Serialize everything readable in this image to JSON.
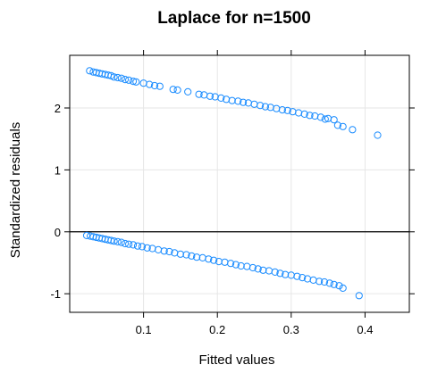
{
  "chart_data": {
    "type": "scatter",
    "title": "Laplace for n=1500",
    "xlabel": "Fitted values",
    "ylabel": "Standardized residuals",
    "xlim": [
      0.0,
      0.46
    ],
    "ylim": [
      -1.3,
      2.85
    ],
    "xticks": [
      0.1,
      0.2,
      0.3,
      0.4
    ],
    "xtick_labels": [
      "0.1",
      "0.2",
      "0.3",
      "0.4"
    ],
    "yticks": [
      -1,
      0,
      1,
      2
    ],
    "ytick_labels": [
      "-1",
      "0",
      "1",
      "2"
    ],
    "grid": true,
    "reference_line_y": 0,
    "marker": "open-circle",
    "color": "#1a8cff",
    "series": [
      {
        "x": [
          0.027,
          0.032,
          0.036,
          0.04,
          0.044,
          0.048,
          0.052,
          0.056,
          0.06,
          0.065,
          0.07,
          0.075,
          0.08,
          0.086,
          0.09,
          0.1,
          0.108,
          0.115,
          0.122,
          0.14,
          0.146,
          0.16,
          0.175,
          0.182,
          0.19,
          0.197,
          0.205,
          0.212,
          0.22,
          0.228,
          0.235,
          0.242,
          0.25,
          0.258,
          0.265,
          0.272,
          0.28,
          0.288,
          0.295,
          0.302,
          0.31,
          0.318,
          0.325,
          0.332,
          0.34,
          0.346,
          0.35,
          0.358,
          0.363,
          0.37,
          0.383,
          0.417
        ],
        "y": [
          2.6,
          2.58,
          2.57,
          2.56,
          2.55,
          2.54,
          2.53,
          2.52,
          2.5,
          2.49,
          2.48,
          2.46,
          2.45,
          2.43,
          2.42,
          2.4,
          2.38,
          2.36,
          2.35,
          2.3,
          2.29,
          2.26,
          2.22,
          2.21,
          2.19,
          2.18,
          2.16,
          2.14,
          2.12,
          2.11,
          2.09,
          2.08,
          2.06,
          2.04,
          2.02,
          2.01,
          1.99,
          1.97,
          1.96,
          1.94,
          1.92,
          1.9,
          1.88,
          1.87,
          1.85,
          1.82,
          1.83,
          1.81,
          1.72,
          1.7,
          1.65,
          1.56
        ]
      },
      {
        "x": [
          0.023,
          0.028,
          0.032,
          0.036,
          0.04,
          0.044,
          0.048,
          0.052,
          0.056,
          0.06,
          0.065,
          0.07,
          0.075,
          0.08,
          0.086,
          0.092,
          0.098,
          0.105,
          0.112,
          0.12,
          0.128,
          0.135,
          0.142,
          0.15,
          0.158,
          0.165,
          0.172,
          0.18,
          0.188,
          0.195,
          0.202,
          0.21,
          0.218,
          0.225,
          0.232,
          0.24,
          0.248,
          0.255,
          0.262,
          0.27,
          0.278,
          0.285,
          0.292,
          0.3,
          0.308,
          0.315,
          0.322,
          0.33,
          0.338,
          0.345,
          0.352,
          0.358,
          0.365,
          0.37,
          0.392
        ],
        "y": [
          -0.06,
          -0.07,
          -0.08,
          -0.09,
          -0.1,
          -0.11,
          -0.12,
          -0.13,
          -0.14,
          -0.15,
          -0.16,
          -0.17,
          -0.19,
          -0.2,
          -0.21,
          -0.23,
          -0.24,
          -0.26,
          -0.27,
          -0.29,
          -0.31,
          -0.32,
          -0.34,
          -0.36,
          -0.37,
          -0.39,
          -0.41,
          -0.42,
          -0.44,
          -0.46,
          -0.48,
          -0.49,
          -0.51,
          -0.53,
          -0.55,
          -0.56,
          -0.58,
          -0.6,
          -0.62,
          -0.63,
          -0.65,
          -0.67,
          -0.69,
          -0.7,
          -0.72,
          -0.74,
          -0.76,
          -0.78,
          -0.8,
          -0.81,
          -0.83,
          -0.85,
          -0.87,
          -0.91,
          -1.03
        ]
      }
    ]
  }
}
